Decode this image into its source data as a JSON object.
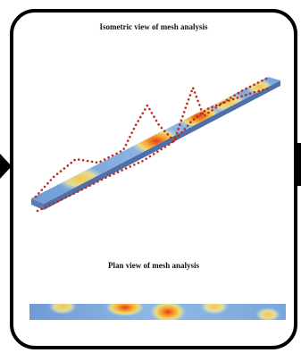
{
  "isometric_title": "Isometric view of mesh analysis",
  "plan_title": "Plan view of mesh analysis"
}
